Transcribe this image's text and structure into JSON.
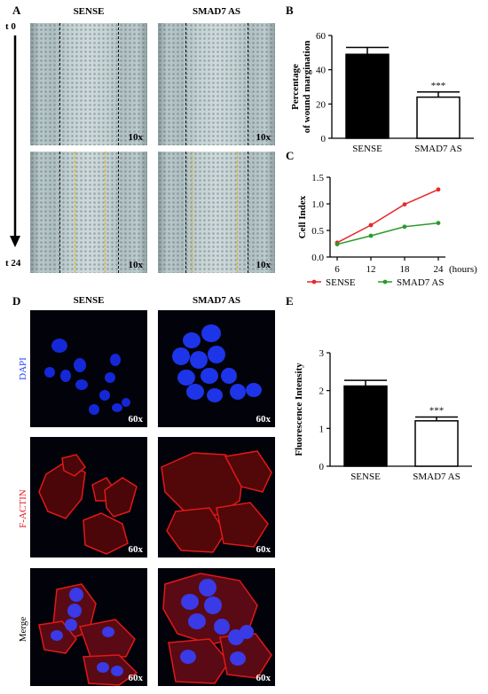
{
  "panel_letters": {
    "a": "A",
    "b": "B",
    "c": "C",
    "d": "D",
    "e": "E"
  },
  "panel_a": {
    "columns": [
      "SENSE",
      "SMAD7 AS"
    ],
    "time_start": "t 0",
    "time_end": "t 24",
    "magnification": "10x"
  },
  "panel_d": {
    "columns": [
      "SENSE",
      "SMAD7 AS"
    ],
    "rows": [
      "DAPI",
      "F-ACTIN",
      "Merge"
    ],
    "magnification": "60x",
    "row_colors": {
      "DAPI": "#1a3cff",
      "F-ACTIN": "#e8141c",
      "Merge": "#000000"
    }
  },
  "chart_data": [
    {
      "id": "B",
      "type": "bar",
      "categories": [
        "SENSE",
        "SMAD7 AS"
      ],
      "values": [
        49,
        24
      ],
      "errors": [
        4,
        3
      ],
      "fills": [
        "#000000",
        "#ffffff"
      ],
      "significance": [
        "",
        "***"
      ],
      "ylabel": "Percentage of wound margination",
      "ylabel_lines": [
        "Percentage",
        "of wound margination"
      ],
      "ylim": [
        0,
        60
      ],
      "yticks": [
        "0",
        "20",
        "40",
        "60"
      ]
    },
    {
      "id": "C",
      "type": "line",
      "x": [
        6,
        12,
        18,
        24
      ],
      "xticks": [
        "6",
        "12",
        "18",
        "24"
      ],
      "xunit": "(hours)",
      "ylabel": "Cell Index",
      "ylim": [
        0,
        1.5
      ],
      "yticks": [
        "0.0",
        "0.5",
        "1.0",
        "1.5"
      ],
      "series": [
        {
          "name": "SENSE",
          "color": "#e8282b",
          "values": [
            0.27,
            0.6,
            0.99,
            1.27
          ]
        },
        {
          "name": "SMAD7 AS",
          "color": "#2a9a2a",
          "values": [
            0.24,
            0.4,
            0.57,
            0.64
          ]
        }
      ],
      "legend_position": "bottom"
    },
    {
      "id": "E",
      "type": "bar",
      "categories": [
        "SENSE",
        "SMAD7 AS"
      ],
      "values": [
        2.12,
        1.2
      ],
      "errors": [
        0.15,
        0.1
      ],
      "fills": [
        "#000000",
        "#ffffff"
      ],
      "significance": [
        "",
        "***"
      ],
      "ylabel": "Fluorescence Intensity",
      "ylim": [
        0,
        3
      ],
      "yticks": [
        "0",
        "1",
        "2",
        "3"
      ]
    }
  ]
}
